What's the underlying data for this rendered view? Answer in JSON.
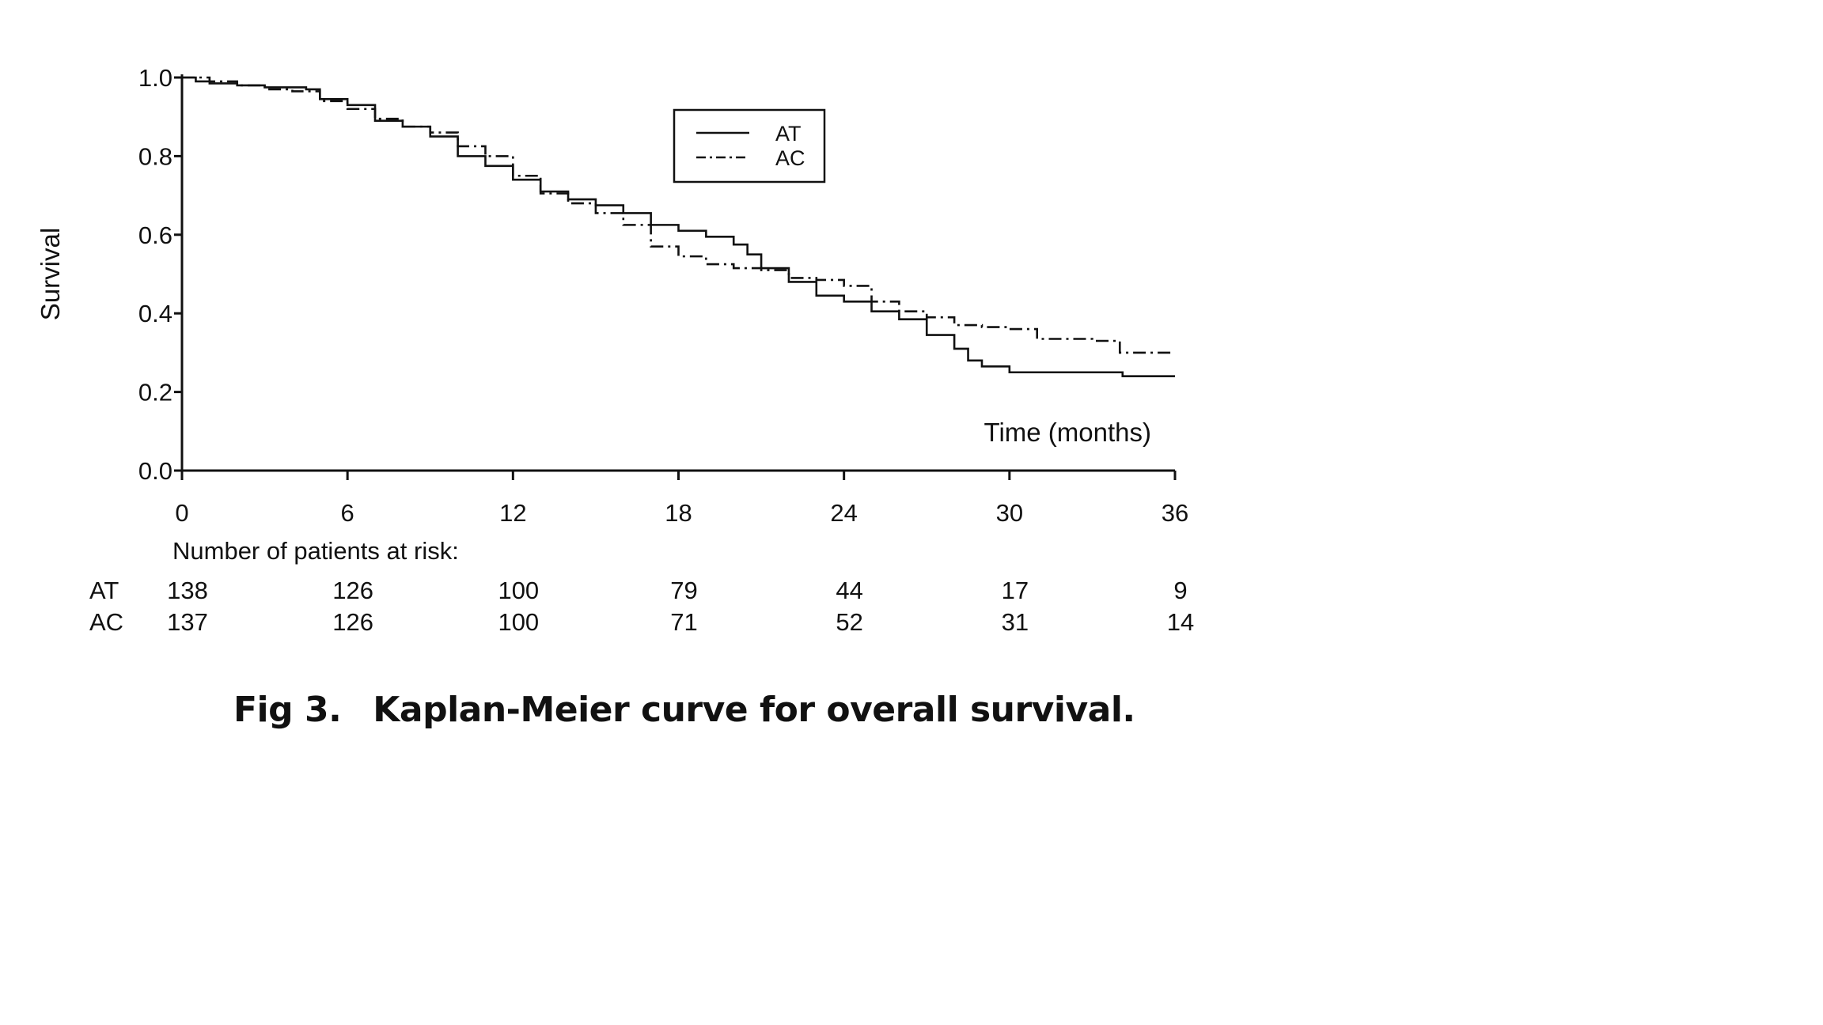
{
  "chart_data": {
    "type": "line",
    "subtype": "kaplan-meier step curve",
    "ylabel": "Survival",
    "xlabel": "Time (months)",
    "xlim": [
      0,
      36
    ],
    "ylim": [
      0.0,
      1.0
    ],
    "x_ticks": [
      "0",
      "6",
      "12",
      "18",
      "24",
      "30",
      "36"
    ],
    "y_ticks": [
      "0.0",
      "0.2",
      "0.4",
      "0.6",
      "0.8",
      "1.0"
    ],
    "grid": false,
    "legend_position": "top-center",
    "series": [
      {
        "name": "AT",
        "line_style": "solid",
        "points": [
          [
            0,
            1.0
          ],
          [
            0.5,
            0.99
          ],
          [
            1,
            0.985
          ],
          [
            2,
            0.98
          ],
          [
            3,
            0.975
          ],
          [
            4,
            0.975
          ],
          [
            4.5,
            0.97
          ],
          [
            5,
            0.945
          ],
          [
            6,
            0.93
          ],
          [
            7,
            0.89
          ],
          [
            8,
            0.875
          ],
          [
            9,
            0.85
          ],
          [
            10,
            0.8
          ],
          [
            11,
            0.775
          ],
          [
            12,
            0.74
          ],
          [
            13,
            0.71
          ],
          [
            14,
            0.69
          ],
          [
            15,
            0.675
          ],
          [
            16,
            0.655
          ],
          [
            17,
            0.625
          ],
          [
            18,
            0.61
          ],
          [
            19,
            0.595
          ],
          [
            20,
            0.575
          ],
          [
            20.5,
            0.55
          ],
          [
            21,
            0.515
          ],
          [
            22,
            0.48
          ],
          [
            23,
            0.445
          ],
          [
            24,
            0.43
          ],
          [
            25,
            0.405
          ],
          [
            26,
            0.385
          ],
          [
            27,
            0.345
          ],
          [
            28,
            0.31
          ],
          [
            28.5,
            0.28
          ],
          [
            29,
            0.265
          ],
          [
            30,
            0.25
          ],
          [
            32,
            0.25
          ],
          [
            34,
            0.25
          ],
          [
            34.1,
            0.24
          ],
          [
            36,
            0.24
          ]
        ]
      },
      {
        "name": "AC",
        "line_style": "dash-dot",
        "points": [
          [
            0,
            1.0
          ],
          [
            0.5,
            1.0
          ],
          [
            1,
            0.99
          ],
          [
            2,
            0.98
          ],
          [
            3,
            0.97
          ],
          [
            4,
            0.965
          ],
          [
            5,
            0.94
          ],
          [
            6,
            0.92
          ],
          [
            7,
            0.895
          ],
          [
            8,
            0.875
          ],
          [
            9,
            0.86
          ],
          [
            10,
            0.825
          ],
          [
            11,
            0.8
          ],
          [
            12,
            0.75
          ],
          [
            13,
            0.705
          ],
          [
            14,
            0.68
          ],
          [
            15,
            0.655
          ],
          [
            16,
            0.625
          ],
          [
            17,
            0.57
          ],
          [
            18,
            0.545
          ],
          [
            19,
            0.525
          ],
          [
            20,
            0.515
          ],
          [
            21,
            0.51
          ],
          [
            22,
            0.49
          ],
          [
            23,
            0.485
          ],
          [
            24,
            0.47
          ],
          [
            25,
            0.43
          ],
          [
            26,
            0.405
          ],
          [
            27,
            0.39
          ],
          [
            28,
            0.37
          ],
          [
            29,
            0.365
          ],
          [
            30,
            0.36
          ],
          [
            31,
            0.335
          ],
          [
            32,
            0.335
          ],
          [
            33,
            0.33
          ],
          [
            34,
            0.3
          ],
          [
            36,
            0.3
          ]
        ]
      }
    ],
    "risk_table": {
      "title": "Number of patients at risk:",
      "rows": [
        {
          "label": "AT",
          "values": [
            "138",
            "126",
            "100",
            "79",
            "44",
            "17",
            "9"
          ]
        },
        {
          "label": "AC",
          "values": [
            "137",
            "126",
            "100",
            "71",
            "52",
            "31",
            "14"
          ]
        }
      ]
    }
  },
  "caption": {
    "label": "Fig 3.",
    "text": "Kaplan-Meier curve for overall survival."
  },
  "colors": {
    "line": "#111111",
    "background": "#ffffff"
  }
}
